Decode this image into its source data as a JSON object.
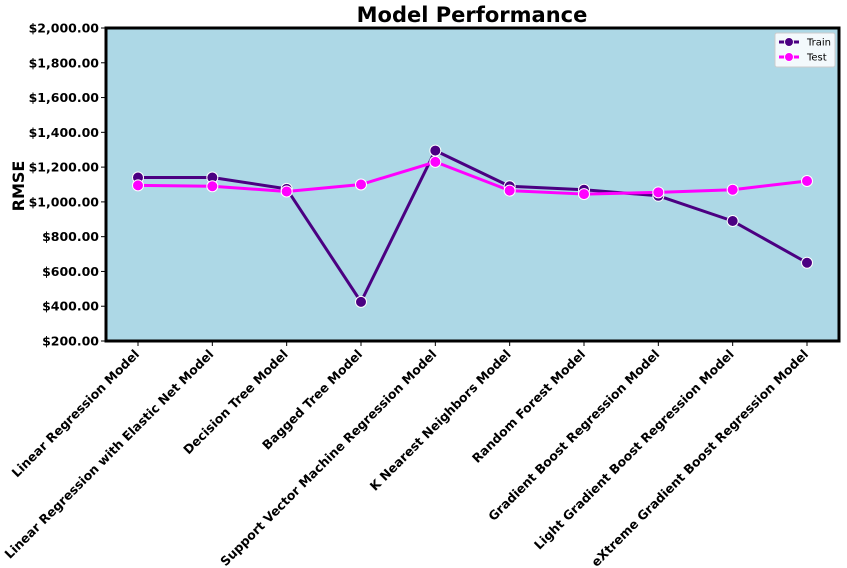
{
  "chart_data": {
    "type": "line",
    "title": "Model Performance",
    "xlabel": "",
    "ylabel": "RMSE",
    "ylim": [
      200,
      2000
    ],
    "yticks": [
      "$200.00",
      "$400.00",
      "$600.00",
      "$800.00",
      "$1,000.00",
      "$1,200.00",
      "$1,400.00",
      "$1,600.00",
      "$1,800.00",
      "$2,000.00"
    ],
    "categories": [
      "Linear Regression Model",
      "Linear Regression with Elastic Net Model",
      "Decision Tree Model",
      "Bagged Tree Model",
      "Support Vector Machine Regression Model",
      "K Nearest Neighbors Model",
      "Random Forest Model",
      "Gradient Boost Regression Model",
      "Light Gradient Boost Regression Model",
      "eXtreme Gradient Boost Regression Model"
    ],
    "series": [
      {
        "name": "Train",
        "color": "#4b0082",
        "values": [
          1140,
          1140,
          1075,
          425,
          1295,
          1090,
          1070,
          1035,
          890,
          650
        ]
      },
      {
        "name": "Test",
        "color": "#ff00ff",
        "values": [
          1095,
          1090,
          1060,
          1100,
          1230,
          1065,
          1045,
          1055,
          1070,
          1120
        ]
      }
    ],
    "background_color": "#add8e6",
    "grid": false,
    "legend_position": "top-right"
  }
}
